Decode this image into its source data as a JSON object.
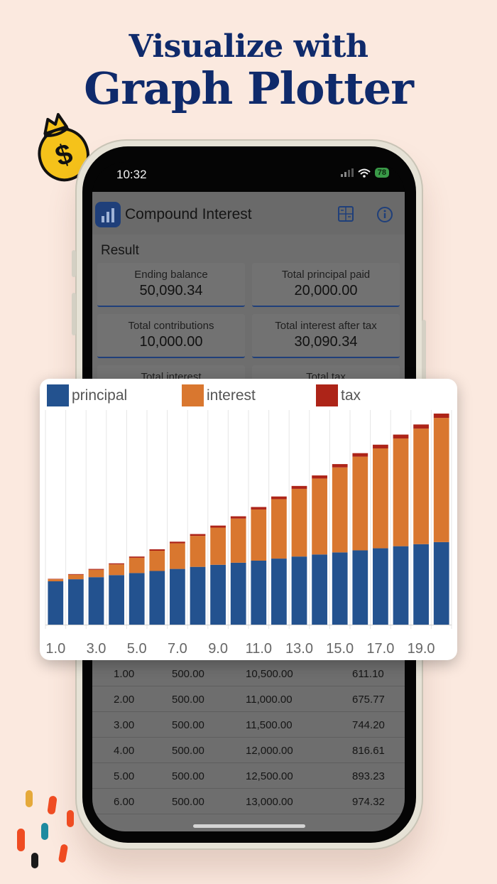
{
  "headline": {
    "line1": "Visualize with",
    "line2": "Graph Plotter"
  },
  "status": {
    "time": "10:32",
    "battery": "78"
  },
  "app": {
    "title": "Compound Interest",
    "section": "Result",
    "cards": [
      {
        "label": "Ending balance",
        "value": "50,090.34"
      },
      {
        "label": "Total principal paid",
        "value": "20,000.00"
      },
      {
        "label": "Total contributions",
        "value": "10,000.00"
      },
      {
        "label": "Total interest after tax",
        "value": "30,090.34"
      },
      {
        "label": "Total interest",
        "value": ""
      },
      {
        "label": "Total tax",
        "value": ""
      }
    ],
    "table_rows": [
      [
        "1.00",
        "500.00",
        "10,500.00",
        "611.10"
      ],
      [
        "2.00",
        "500.00",
        "11,000.00",
        "675.77"
      ],
      [
        "3.00",
        "500.00",
        "11,500.00",
        "744.20"
      ],
      [
        "4.00",
        "500.00",
        "12,000.00",
        "816.61"
      ],
      [
        "5.00",
        "500.00",
        "12,500.00",
        "893.23"
      ],
      [
        "6.00",
        "500.00",
        "13,000.00",
        "974.32"
      ]
    ]
  },
  "colors": {
    "principal": "#23528f",
    "interest": "#d9772f",
    "tax": "#ad2418",
    "navy": "#0f2a6b"
  },
  "chart_data": {
    "type": "bar",
    "stacked": true,
    "legend": [
      "principal",
      "interest",
      "tax"
    ],
    "x": [
      1,
      2,
      3,
      4,
      5,
      6,
      7,
      8,
      9,
      10,
      11,
      12,
      13,
      14,
      15,
      16,
      17,
      18,
      19,
      20
    ],
    "x_tick_labels": [
      "1.0",
      "3.0",
      "5.0",
      "7.0",
      "9.0",
      "11.0",
      "13.0",
      "15.0",
      "17.0",
      "19.0"
    ],
    "ylim": [
      0,
      52000
    ],
    "grid": "vertical",
    "series": [
      {
        "name": "principal",
        "values": [
          10500,
          11000,
          11500,
          12000,
          12500,
          13000,
          13500,
          14000,
          14500,
          15000,
          15500,
          16000,
          16500,
          17000,
          17500,
          18000,
          18500,
          19000,
          19500,
          20000
        ]
      },
      {
        "name": "interest",
        "values": [
          500,
          1100,
          1800,
          2600,
          3700,
          4900,
          6200,
          7500,
          9000,
          10700,
          12400,
          14400,
          16400,
          18400,
          20600,
          22700,
          24200,
          26100,
          28000,
          30090
        ]
      },
      {
        "name": "tax",
        "values": [
          100,
          150,
          200,
          250,
          300,
          350,
          400,
          450,
          500,
          550,
          600,
          650,
          700,
          750,
          800,
          850,
          900,
          950,
          1000,
          1050
        ]
      }
    ]
  }
}
